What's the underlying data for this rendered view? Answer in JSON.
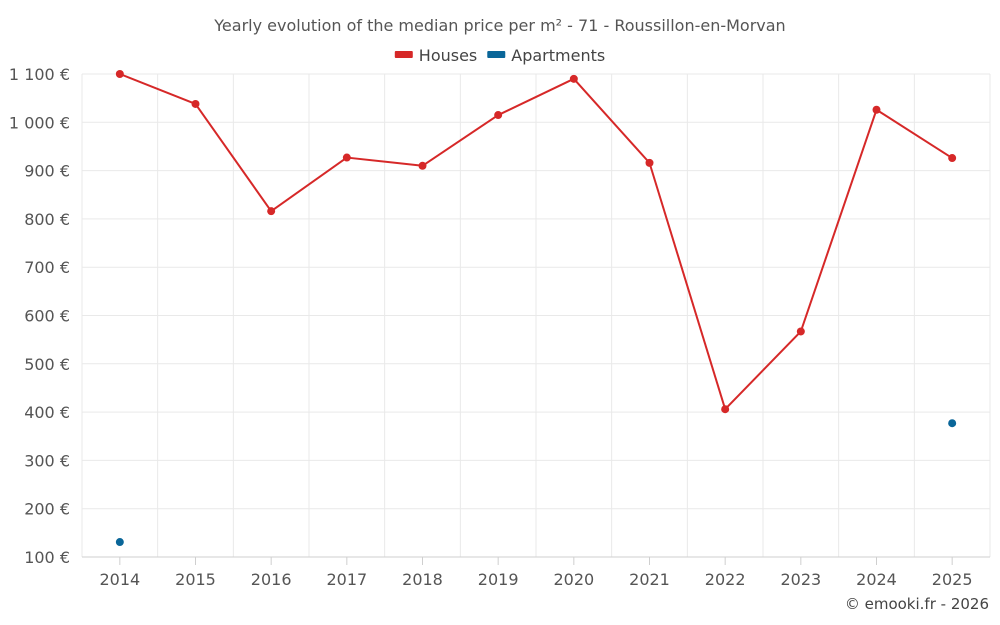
{
  "chart_data": {
    "type": "line",
    "title": "Yearly evolution of the median price per m² - 71 - Roussillon-en-Morvan",
    "categories": [
      "2014",
      "2015",
      "2016",
      "2017",
      "2018",
      "2019",
      "2020",
      "2021",
      "2022",
      "2023",
      "2024",
      "2025"
    ],
    "series": [
      {
        "name": "Houses",
        "color": "#d62828",
        "values": [
          1100,
          1038,
          816,
          927,
          910,
          1015,
          1090,
          916,
          406,
          567,
          1026,
          926
        ]
      },
      {
        "name": "Apartments",
        "color": "#0a6699",
        "values": [
          131,
          null,
          null,
          null,
          null,
          null,
          null,
          null,
          null,
          null,
          null,
          377
        ]
      }
    ],
    "ylim": [
      100,
      1100
    ],
    "yticks": [
      {
        "value": 100,
        "label": "100 €"
      },
      {
        "value": 200,
        "label": "200 €"
      },
      {
        "value": 300,
        "label": "300 €"
      },
      {
        "value": 400,
        "label": "400 €"
      },
      {
        "value": 500,
        "label": "500 €"
      },
      {
        "value": 600,
        "label": "600 €"
      },
      {
        "value": 700,
        "label": "700 €"
      },
      {
        "value": 800,
        "label": "800 €"
      },
      {
        "value": 900,
        "label": "900 €"
      },
      {
        "value": 1000,
        "label": "1 000 €"
      },
      {
        "value": 1100,
        "label": "1 100 €"
      }
    ],
    "xlabel": "",
    "ylabel": "",
    "legend_position": "top-center",
    "grid": true
  },
  "credit": "© emooki.fr - 2026"
}
